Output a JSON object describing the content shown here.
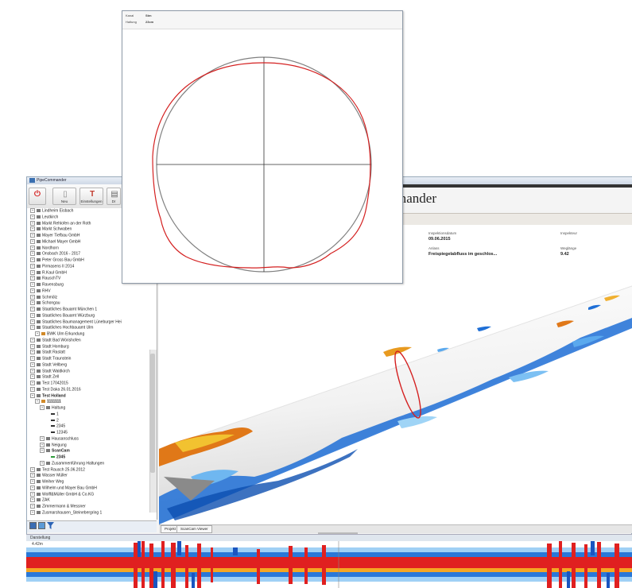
{
  "window": {
    "title": "PipeCommander"
  },
  "ribbon": {
    "buttons": [
      {
        "label": "",
        "icon": "power-icon"
      },
      {
        "label": "Neu",
        "icon": "new-doc-icon"
      },
      {
        "label": "Einstellungen",
        "icon": "settings-icon"
      },
      {
        "label": "Dr",
        "icon": "print-icon"
      }
    ]
  },
  "tree": {
    "items": [
      {
        "label": "Lindheim Eisbach",
        "level": 0,
        "bold": false
      },
      {
        "label": "Leutkirch",
        "level": 0,
        "bold": false
      },
      {
        "label": "Markt Rehlofen an der Roth",
        "level": 0,
        "bold": false
      },
      {
        "label": "Markt Schwaben",
        "level": 0,
        "bold": false
      },
      {
        "label": "Mayer Tiefbau GmbH",
        "level": 0,
        "bold": false
      },
      {
        "label": "Michael Mayer GmbH",
        "level": 0,
        "bold": false
      },
      {
        "label": "Nordhorn",
        "level": 0,
        "bold": false
      },
      {
        "label": "Onsbach 2016 - 2017",
        "level": 0,
        "bold": false
      },
      {
        "label": "Peter Gross Bau GmbH",
        "level": 0,
        "bold": false
      },
      {
        "label": "Pirmasens II 2014",
        "level": 0,
        "bold": false
      },
      {
        "label": "R.Kaul GmbH",
        "level": 0,
        "bold": false
      },
      {
        "label": "RauschTV",
        "level": 0,
        "bold": false
      },
      {
        "label": "Ravensburg",
        "level": 0,
        "bold": false
      },
      {
        "label": "RHV",
        "level": 0,
        "bold": false
      },
      {
        "label": "Schmölz",
        "level": 0,
        "bold": false
      },
      {
        "label": "Schongau",
        "level": 0,
        "bold": false
      },
      {
        "label": "Staatliches Bauamt München 1",
        "level": 0,
        "bold": false
      },
      {
        "label": "Staatliches Bauamt Würzburg",
        "level": 0,
        "bold": false
      },
      {
        "label": "Staatliches Baumanagement Lüneburger Hei",
        "level": 0,
        "bold": false
      },
      {
        "label": "Staatliches Hochbauamt Ulm",
        "level": 0,
        "bold": false
      },
      {
        "label": "BWK Ulm Erkundung",
        "level": 1,
        "bold": false
      },
      {
        "label": "Stadt Bad Wörishofen",
        "level": 0,
        "bold": false
      },
      {
        "label": "Stadt Homburg",
        "level": 0,
        "bold": false
      },
      {
        "label": "Stadt Rastatt",
        "level": 0,
        "bold": false
      },
      {
        "label": "Stadt Traunstein",
        "level": 0,
        "bold": false
      },
      {
        "label": "Stadt Vellberg",
        "level": 0,
        "bold": false
      },
      {
        "label": "Stadt Waldkirch",
        "level": 0,
        "bold": false
      },
      {
        "label": "Stadt Zell",
        "level": 0,
        "bold": false
      },
      {
        "label": "Test 17042015",
        "level": 0,
        "bold": false
      },
      {
        "label": "Test Daka 26.01.2016",
        "level": 0,
        "bold": false
      },
      {
        "label": "Test Holland",
        "level": 0,
        "bold": true
      },
      {
        "label": "1111111",
        "level": 1,
        "bold": true
      },
      {
        "label": "Haltung",
        "level": 2,
        "bold": false
      },
      {
        "label": "1",
        "level": 3,
        "bold": false
      },
      {
        "label": "2",
        "level": 3,
        "bold": false
      },
      {
        "label": "2345",
        "level": 3,
        "bold": false
      },
      {
        "label": "12345",
        "level": 3,
        "bold": false
      },
      {
        "label": "Hausanschluss",
        "level": 2,
        "bold": false
      },
      {
        "label": "Neigung",
        "level": 2,
        "bold": false
      },
      {
        "label": "ScanCam",
        "level": 2,
        "bold": true
      },
      {
        "label": "2345",
        "level": 3,
        "bold": true
      },
      {
        "label": "Zusammenführung Haltungen",
        "level": 2,
        "bold": false
      },
      {
        "label": "Test Rausch 25.06.2012",
        "level": 0,
        "bold": false
      },
      {
        "label": "Wasser Müller",
        "level": 0,
        "bold": false
      },
      {
        "label": "Weiher Weg",
        "level": 0,
        "bold": false
      },
      {
        "label": "Wilhelm und Mayer Bau GmbH",
        "level": 0,
        "bold": false
      },
      {
        "label": "Wolff&Müller GmbH & Co.KG",
        "level": 0,
        "bold": false
      },
      {
        "label": "ZAK",
        "level": 0,
        "bold": false
      },
      {
        "label": "Zimmermann & Messner",
        "level": 0,
        "bold": false
      },
      {
        "label": "Zusmarshausen_Steinebergring 1",
        "level": 0,
        "bold": false
      }
    ]
  },
  "header": {
    "title": "mander"
  },
  "details": {
    "inspection_date_label": "Inspektionsdatum",
    "inspection_date": "09.06.2015",
    "inspector_label": "Inspekteur",
    "inspector": "",
    "reason_label": "Anlass",
    "reason": "Freispiegelabfluss im geschlos...",
    "distance_label": "Weglänge",
    "distance": "9.42"
  },
  "popup": {
    "row1_label": "Kanal",
    "row1_value": "Stm",
    "row2_label": "Haltung",
    "row2_value": "23cm"
  },
  "view_tabs": [
    "Projekt",
    "ScanCam Viewer"
  ],
  "strip": {
    "label": "Darstellung",
    "meter": "4.42m"
  },
  "colors": {
    "deform_red": "#d42020",
    "deform_blue": "#1f6fd6",
    "accent_orange": "#e07818"
  }
}
